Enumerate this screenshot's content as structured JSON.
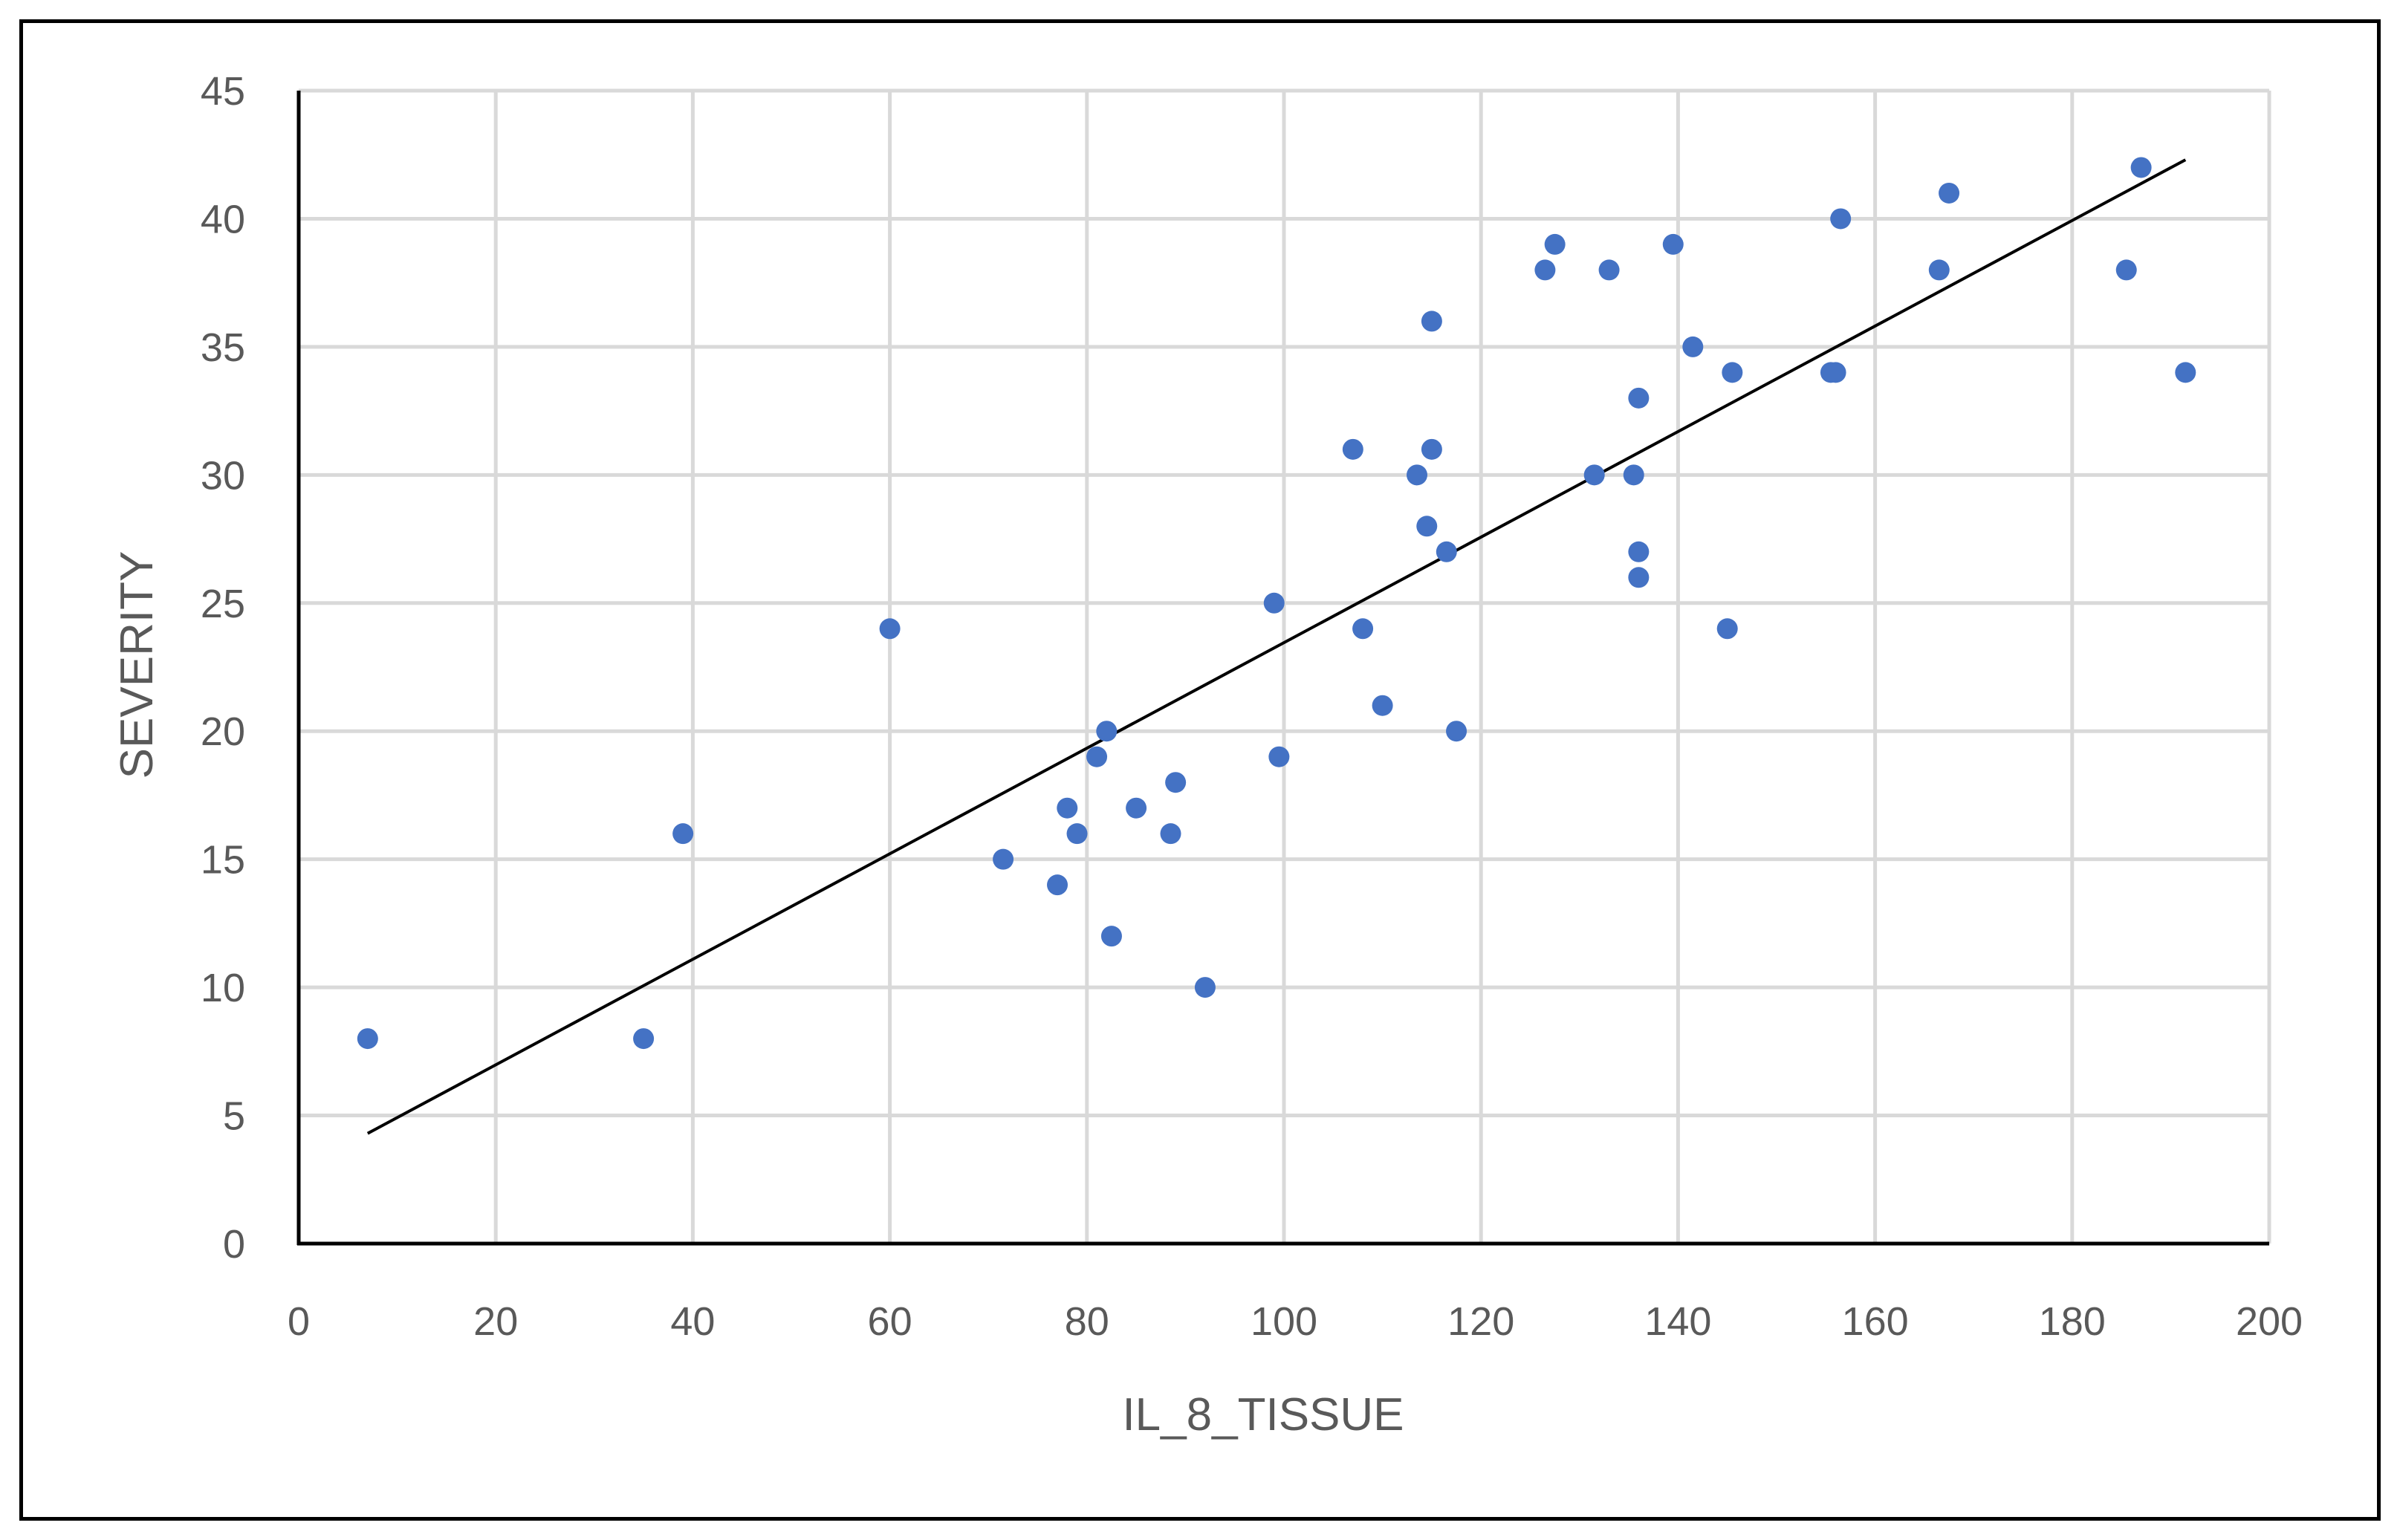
{
  "chart_data": {
    "type": "scatter",
    "title": "",
    "xlabel": "IL_8_TISSUE",
    "ylabel": "SEVERITY",
    "xlim": [
      0,
      200
    ],
    "ylim": [
      0,
      45
    ],
    "x_ticks": [
      0,
      20,
      40,
      60,
      80,
      100,
      120,
      140,
      160,
      180,
      200
    ],
    "y_ticks": [
      0,
      5,
      10,
      15,
      20,
      25,
      30,
      35,
      40,
      45
    ],
    "grid": true,
    "legend": "none",
    "marker_color": "#4472c4",
    "trendline": {
      "type": "linear",
      "x_start": 7,
      "y_start": 4.3,
      "x_end": 191.5,
      "y_end": 42.3,
      "color": "#000000"
    },
    "series": [
      {
        "points": [
          [
            7,
            8
          ],
          [
            35,
            8
          ],
          [
            39,
            16
          ],
          [
            60,
            24
          ],
          [
            71.5,
            15
          ],
          [
            77,
            14
          ],
          [
            78,
            17
          ],
          [
            79,
            16
          ],
          [
            81,
            19
          ],
          [
            82,
            20
          ],
          [
            82.5,
            12
          ],
          [
            85,
            17
          ],
          [
            88.5,
            16
          ],
          [
            89,
            18
          ],
          [
            92,
            10
          ],
          [
            99,
            25
          ],
          [
            99.5,
            19
          ],
          [
            107,
            31
          ],
          [
            108,
            24
          ],
          [
            110,
            21
          ],
          [
            113.5,
            30
          ],
          [
            114.5,
            28
          ],
          [
            115,
            36
          ],
          [
            115,
            31
          ],
          [
            116.5,
            27
          ],
          [
            117.5,
            20
          ],
          [
            126.5,
            38
          ],
          [
            127.5,
            39
          ],
          [
            131.5,
            30
          ],
          [
            133,
            38
          ],
          [
            135.5,
            30
          ],
          [
            136,
            33
          ],
          [
            136,
            27
          ],
          [
            136,
            26
          ],
          [
            139.5,
            39
          ],
          [
            141.5,
            35
          ],
          [
            145,
            24
          ],
          [
            145.5,
            34
          ],
          [
            155.5,
            34
          ],
          [
            156,
            34
          ],
          [
            156.5,
            40
          ],
          [
            166.5,
            38
          ],
          [
            167.5,
            41
          ],
          [
            185.5,
            38
          ],
          [
            187,
            42
          ],
          [
            191.5,
            34
          ]
        ]
      }
    ]
  }
}
